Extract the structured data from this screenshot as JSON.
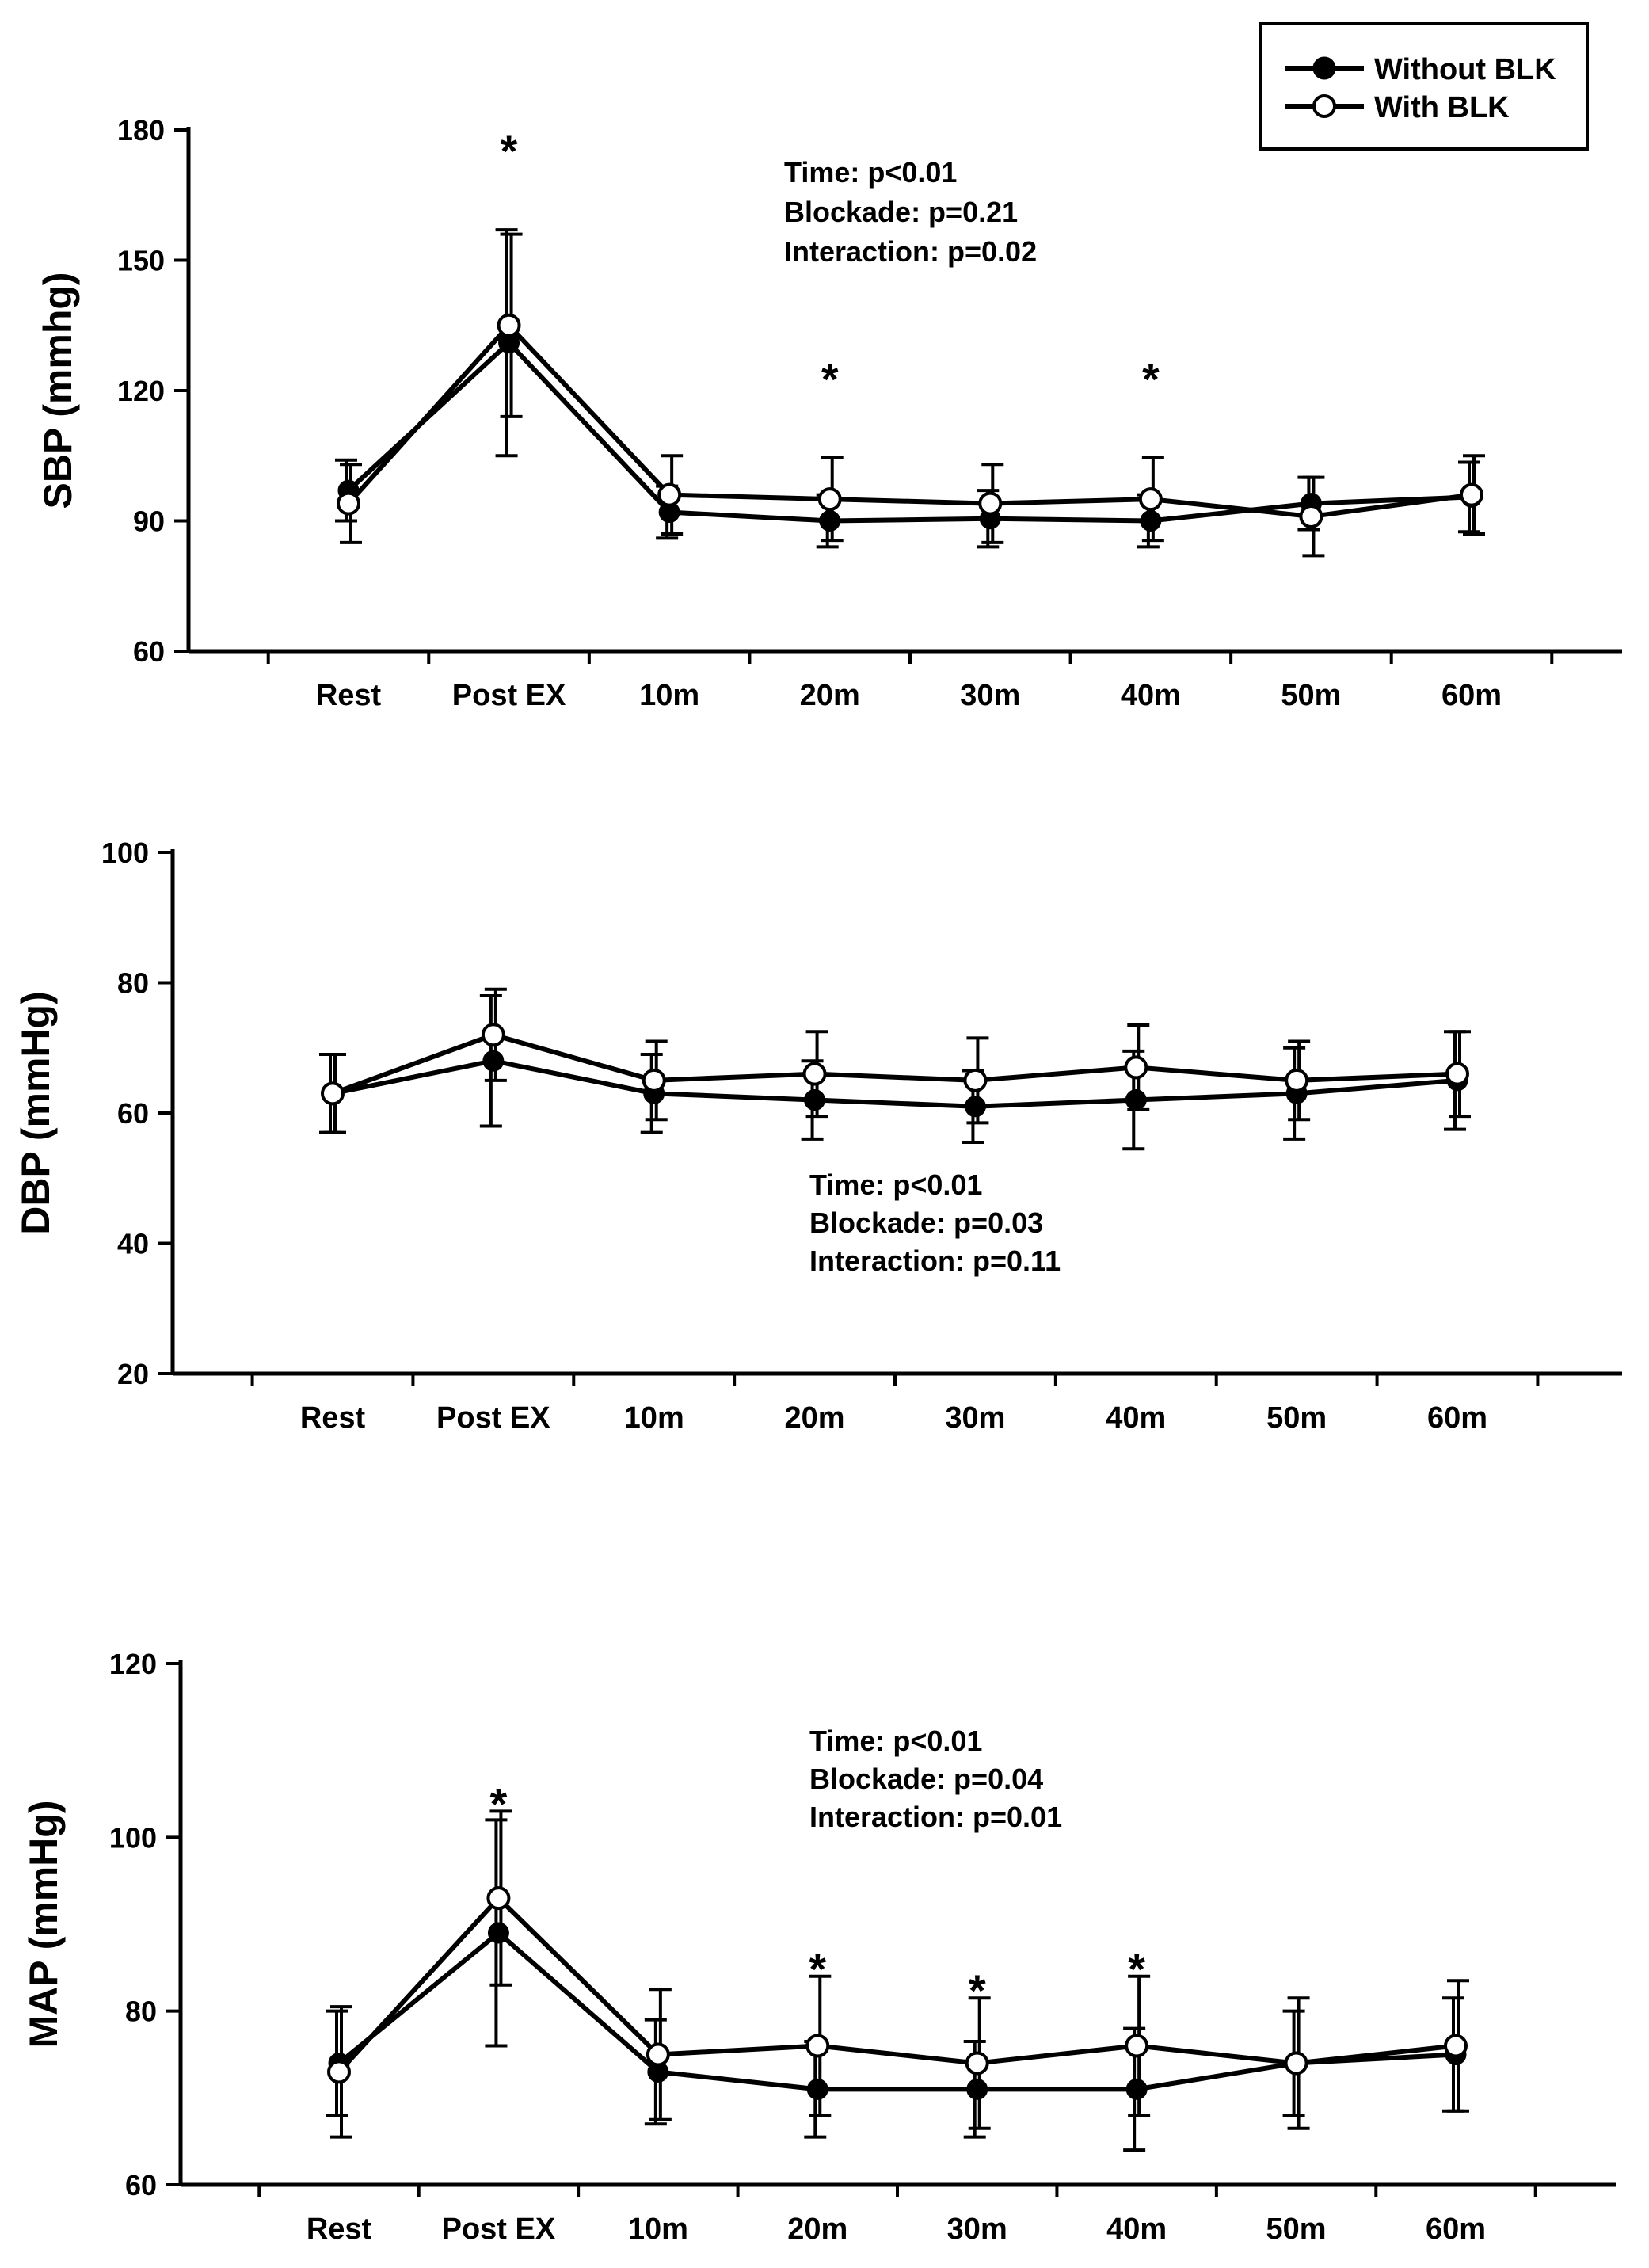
{
  "legend": {
    "entries": [
      {
        "label": "Without BLK",
        "marker": "filled-circle"
      },
      {
        "label": "With BLK",
        "marker": "open-circle"
      }
    ]
  },
  "chart_data": [
    {
      "id": "sbp",
      "type": "line",
      "ylabel": "SBP (mmhg)",
      "xlabel": "",
      "ylim": [
        60,
        180
      ],
      "yticks": [
        60,
        90,
        120,
        150,
        180
      ],
      "categories": [
        "Rest",
        "Post EX",
        "10m",
        "20m",
        "30m",
        "40m",
        "50m",
        "60m"
      ],
      "series": [
        {
          "name": "Without BLK",
          "marker": "filled",
          "values": [
            97,
            131,
            92,
            90,
            90.5,
            90,
            94,
            95.5
          ],
          "err": [
            7,
            26,
            6,
            6,
            6.5,
            6,
            6,
            8
          ]
        },
        {
          "name": "With BLK",
          "marker": "open",
          "values": [
            94,
            135,
            96,
            95,
            94,
            95,
            91,
            96
          ],
          "err": [
            9,
            21,
            9,
            9.5,
            9,
            9.5,
            9,
            9
          ]
        }
      ],
      "annotations": [
        "Time: p<0.01",
        "Blockade: p=0.21",
        "Interaction: p=0.02"
      ],
      "significance": [
        {
          "category": "Post EX",
          "label": "*"
        },
        {
          "category": "20m",
          "label": "*"
        },
        {
          "category": "40m",
          "label": "*"
        }
      ]
    },
    {
      "id": "dbp",
      "type": "line",
      "ylabel": "DBP (mmHg)",
      "xlabel": "",
      "ylim": [
        20,
        100
      ],
      "yticks": [
        20,
        40,
        60,
        80,
        100
      ],
      "categories": [
        "Rest",
        "Post EX",
        "10m",
        "20m",
        "30m",
        "40m",
        "50m",
        "60m"
      ],
      "series": [
        {
          "name": "Without BLK",
          "marker": "filled",
          "values": [
            63,
            68,
            63,
            62,
            61,
            62,
            63,
            65
          ],
          "err": [
            6,
            10,
            6,
            6,
            5.5,
            7.5,
            7,
            7.5
          ]
        },
        {
          "name": "With BLK",
          "marker": "open",
          "values": [
            63,
            72,
            65,
            66,
            65,
            67,
            65,
            66
          ],
          "err": [
            6,
            7,
            6,
            6.5,
            6.5,
            6.5,
            6,
            6.5
          ]
        }
      ],
      "annotations": [
        "Time: p<0.01",
        "Blockade: p=0.03",
        "Interaction: p=0.11"
      ],
      "significance": []
    },
    {
      "id": "map",
      "type": "line",
      "ylabel": "MAP (mmHg)",
      "xlabel": "",
      "ylim": [
        60,
        120
      ],
      "yticks": [
        60,
        80,
        100,
        120
      ],
      "categories": [
        "Rest",
        "Post EX",
        "10m",
        "20m",
        "30m",
        "40m",
        "50m",
        "60m"
      ],
      "series": [
        {
          "name": "Without BLK",
          "marker": "filled",
          "values": [
            74,
            89,
            73,
            71,
            71,
            71,
            74,
            75
          ],
          "err": [
            6,
            13,
            6,
            5.5,
            5.5,
            7,
            6,
            6.5
          ]
        },
        {
          "name": "With BLK",
          "marker": "open",
          "values": [
            73,
            93,
            75,
            76,
            74,
            76,
            74,
            76
          ],
          "err": [
            7.5,
            10,
            7.5,
            8,
            7.5,
            8,
            7.5,
            7.5
          ]
        }
      ],
      "annotations": [
        "Time: p<0.01",
        "Blockade: p=0.04",
        "Interaction: p=0.01"
      ],
      "significance": [
        {
          "category": "Post EX",
          "label": "*"
        },
        {
          "category": "20m",
          "label": "*"
        },
        {
          "category": "30m",
          "label": "*"
        },
        {
          "category": "40m",
          "label": "*"
        }
      ]
    }
  ]
}
